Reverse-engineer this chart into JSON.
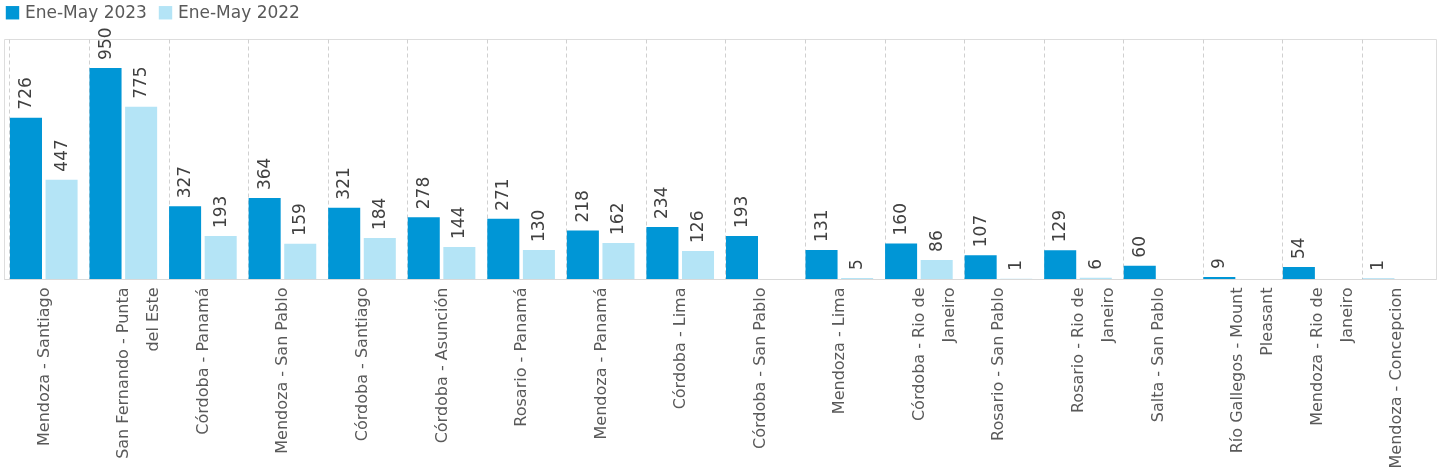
{
  "chart_data": {
    "type": "bar",
    "categories": [
      "Mendoza - Santiago",
      "San Fernando - Punta del Este",
      "Córdoba - Panamá",
      "Mendoza - San Pablo",
      "Córdoba - Santiago",
      "Córdoba - Asunción",
      "Rosario - Panamá",
      "Mendoza - Panamá",
      "Córdoba - Lima",
      "Córdoba - San Pablo",
      "Mendoza - Lima",
      "Córdoba - Rio de Janeiro",
      "Rosario - San Pablo",
      "Rosario - Rio de Janeiro",
      "Salta - San Pablo",
      "Río Gallegos - Mount Pleasant",
      "Mendoza - Rio de Janeiro",
      "Mendoza - Concepcion"
    ],
    "series": [
      {
        "name": "Ene-May 2023",
        "color": "#0096d6",
        "values": [
          726,
          950,
          327,
          364,
          321,
          278,
          271,
          218,
          234,
          193,
          131,
          160,
          107,
          129,
          60,
          9,
          54,
          1
        ]
      },
      {
        "name": "Ene-May 2022",
        "color": "#b4e4f6",
        "values": [
          447,
          775,
          193,
          159,
          184,
          144,
          130,
          162,
          126,
          null,
          5,
          86,
          1,
          6,
          null,
          null,
          null,
          null
        ]
      }
    ],
    "ylim": [
      0,
      1080
    ],
    "tick_labels": "x",
    "data_labels": true,
    "grid": "x",
    "legend": "top"
  }
}
